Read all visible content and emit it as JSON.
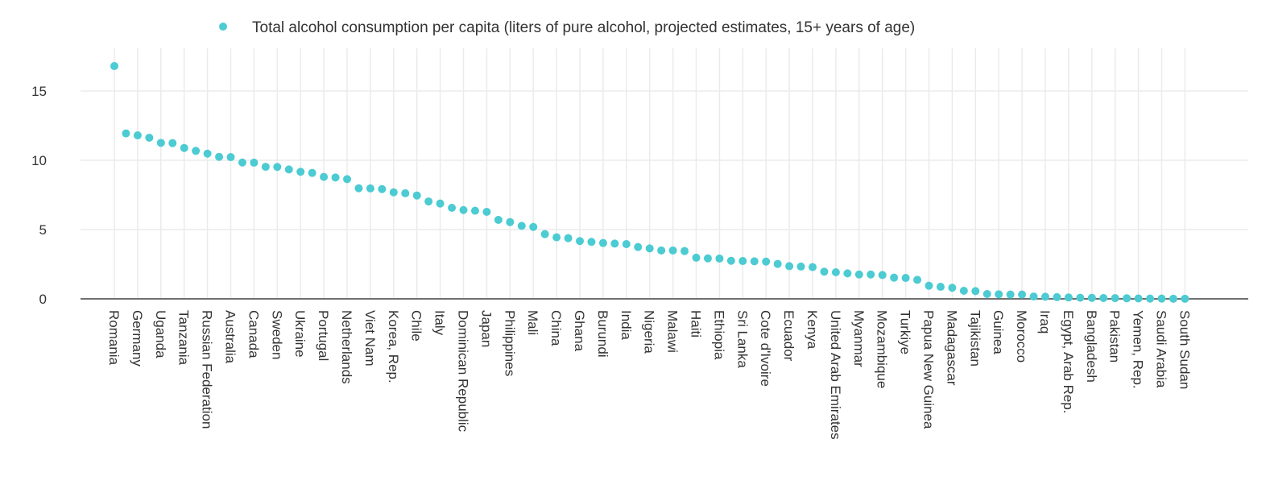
{
  "chart_data": {
    "type": "scatter",
    "title": "",
    "xlabel": "",
    "ylabel": "",
    "legend": {
      "position": "top",
      "entries": [
        "Total alcohol consumption per capita (liters of pure alcohol, projected estimates, 15+ years of age)"
      ]
    },
    "series": [
      {
        "name": "Total alcohol consumption per capita (liters of pure alcohol, projected estimates, 15+ years of age)",
        "color": "#4ccbd3",
        "values": [
          16.8,
          11.94,
          11.8,
          11.63,
          11.26,
          11.24,
          10.89,
          10.68,
          10.48,
          10.25,
          10.23,
          9.84,
          9.83,
          9.53,
          9.52,
          9.34,
          9.17,
          9.09,
          8.8,
          8.76,
          8.64,
          7.98,
          7.97,
          7.92,
          7.69,
          7.62,
          7.46,
          7.03,
          6.88,
          6.57,
          6.41,
          6.36,
          6.28,
          5.7,
          5.54,
          5.27,
          5.19,
          4.67,
          4.44,
          4.38,
          4.17,
          4.11,
          4.03,
          3.99,
          3.95,
          3.74,
          3.64,
          3.49,
          3.49,
          3.45,
          2.97,
          2.92,
          2.91,
          2.75,
          2.73,
          2.71,
          2.69,
          2.52,
          2.36,
          2.33,
          2.29,
          1.96,
          1.92,
          1.84,
          1.76,
          1.76,
          1.72,
          1.53,
          1.51,
          1.37,
          0.95,
          0.87,
          0.8,
          0.58,
          0.56,
          0.35,
          0.33,
          0.31,
          0.31,
          0.17,
          0.15,
          0.12,
          0.1,
          0.08,
          0.07,
          0.06,
          0.05,
          0.04,
          0.03,
          0.02,
          0.02,
          0.01,
          0.01
        ]
      }
    ],
    "categories": [
      "Romania",
      "",
      "Germany",
      "",
      "Uganda",
      "",
      "Tanzania",
      "",
      "Russian Federation",
      "",
      "Australia",
      "",
      "Canada",
      "",
      "Sweden",
      "",
      "Ukraine",
      "",
      "Portugal",
      "",
      "Netherlands",
      "",
      "Viet Nam",
      "",
      "Korea, Rep.",
      "",
      "Chile",
      "",
      "Italy",
      "",
      "Dominican Republic",
      "",
      "Japan",
      "",
      "Philippines",
      "",
      "Mali",
      "",
      "China",
      "",
      "Ghana",
      "",
      "Burundi",
      "",
      "India",
      "",
      "Nigeria",
      "",
      "Malawi",
      "",
      "Haiti",
      "",
      "Ethiopia",
      "",
      "Sri Lanka",
      "",
      "Cote d'Ivoire",
      "",
      "Ecuador",
      "",
      "Kenya",
      "",
      "United Arab Emirates",
      "",
      "Myanmar",
      "",
      "Mozambique",
      "",
      "Turkiye",
      "",
      "Papua New Guinea",
      "",
      "Madagascar",
      "",
      "Tajikistan",
      "",
      "Guinea",
      "",
      "Morocco",
      "",
      "Iraq",
      "",
      "Egypt, Arab Rep.",
      "",
      "Bangladesh",
      "",
      "Pakistan",
      "",
      "Yemen, Rep.",
      "",
      "Saudi Arabia",
      "",
      "South Sudan"
    ],
    "y_ticks": [
      "0",
      "5",
      "10",
      "15"
    ],
    "y_tick_values": [
      0,
      5,
      10,
      15
    ],
    "ylim": [
      0,
      18
    ],
    "grid": true,
    "colors": {
      "point": "#4ccbd3",
      "grid": "#ebebeb",
      "axis": "#444444"
    }
  }
}
